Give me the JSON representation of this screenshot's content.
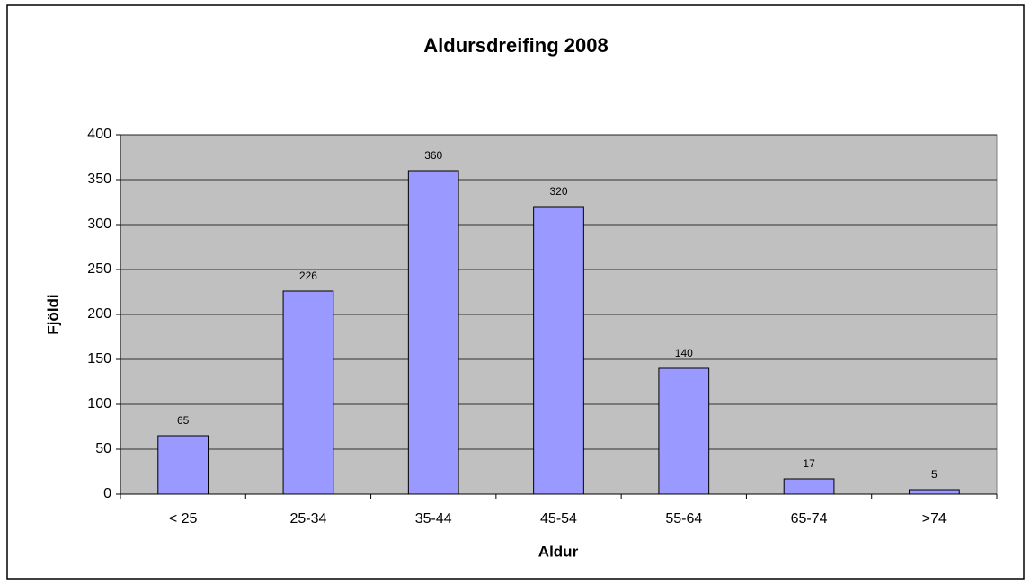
{
  "chart_data": {
    "type": "bar",
    "title": "Aldursdreifing 2008",
    "x_label": "Aldur",
    "y_label": "Fjöldi",
    "categories": [
      "< 25",
      "25-34",
      "35-44",
      "45-54",
      "55-64",
      "65-74",
      ">74"
    ],
    "values": [
      65,
      226,
      360,
      320,
      140,
      17,
      5
    ],
    "color": "#9999ff",
    "ylim": [
      0,
      400
    ],
    "yticks": [
      0,
      50,
      100,
      150,
      200,
      250,
      300,
      350,
      400
    ],
    "grid": true
  }
}
